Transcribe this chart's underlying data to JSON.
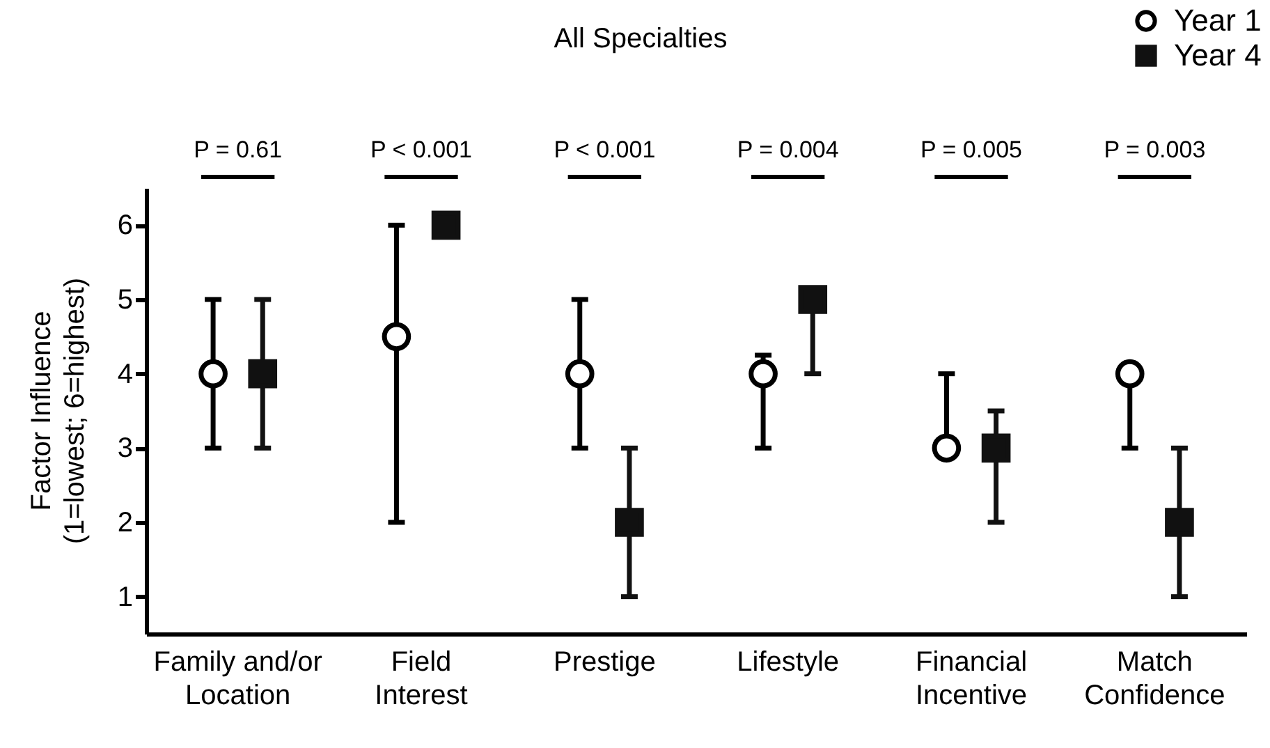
{
  "chart_data": {
    "type": "scatter",
    "title": "All Specialties",
    "ylabel": "Factor Influence\n(1=lowest; 6=highest)",
    "categories": [
      "Family and/or\nLocation",
      "Field\nInterest",
      "Prestige",
      "Lifestyle",
      "Financial\nIncentive",
      "Match\nConfidence"
    ],
    "series": [
      {
        "name": "Year 1",
        "color": "#000000",
        "marker": "circle",
        "values": [
          4,
          4.5,
          4,
          4,
          3,
          4
        ],
        "errors": [
          [
            3,
            5
          ],
          [
            2,
            6
          ],
          [
            3,
            5
          ],
          [
            3,
            4.25
          ],
          [
            3,
            4
          ],
          [
            3,
            4
          ]
        ]
      },
      {
        "name": "Year 4",
        "color": "#111111",
        "marker": "square",
        "values": [
          4,
          6,
          2,
          5,
          3,
          2
        ],
        "errors": [
          [
            3,
            5
          ],
          null,
          [
            1,
            3
          ],
          [
            4,
            5
          ],
          [
            2,
            3.5
          ],
          [
            1,
            3
          ]
        ]
      }
    ],
    "annotations": [
      "P = 0.61",
      "P < 0.001",
      "P < 0.001",
      "P = 0.004",
      "P = 0.005",
      "P = 0.003"
    ],
    "ylim": [
      0.5,
      6.5
    ],
    "yticks": [
      1,
      2,
      3,
      4,
      5,
      6
    ],
    "grid": false,
    "legend": "top right"
  }
}
